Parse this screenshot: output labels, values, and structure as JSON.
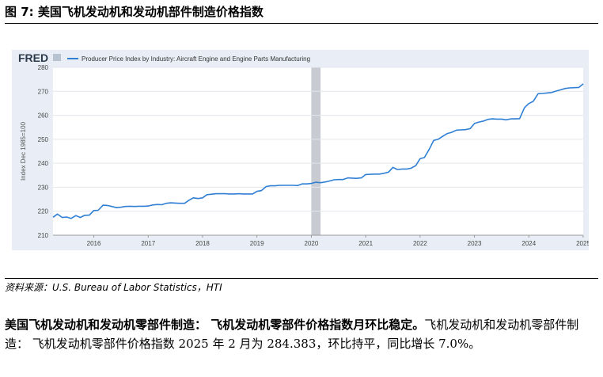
{
  "figure_title": "图 7: 美国飞机发动机和发动机部件制造价格指数",
  "source_text": "资料来源：U.S. Bureau of Labor Statistics，HTI",
  "paragraph": {
    "lead": "美国飞机发动机和发动机零部件制造：  飞机发动机零部件价格指数月环比稳定。",
    "text": "飞机发动机和发动机零部件制造：  飞机发动机零部件价格指数 2025 年 2 月为 284.383，环比持平，同比增长 7.0%。"
  },
  "fred_logo": "FRED",
  "colors": {
    "line": "#2f7fd5",
    "panel": "#e9eef6",
    "recession": "#c8ccd2",
    "grid": "#e2e6ec"
  },
  "chart_data": {
    "type": "line",
    "title": "",
    "legend_label": "Producer Price Index by Industry: Aircraft Engine and Engine Parts Manufacturing",
    "legend_position": "top-left",
    "ylabel": "Index Dec 1985=100",
    "xlabel": "",
    "ylim": [
      210,
      280
    ],
    "yticks": [
      210,
      220,
      230,
      240,
      250,
      260,
      270,
      280
    ],
    "xlim": [
      2015.25,
      2025.0
    ],
    "xticks": [
      2016,
      2017,
      2018,
      2019,
      2020,
      2021,
      2022,
      2023,
      2024,
      2025
    ],
    "grid": true,
    "recession": [
      2020.0,
      2020.17
    ],
    "series": [
      {
        "name": "Producer Price Index by Industry: Aircraft Engine and Engine Parts Manufacturing",
        "x": [
          2015.25,
          2015.33,
          2015.42,
          2015.5,
          2015.58,
          2015.67,
          2015.75,
          2015.83,
          2015.92,
          2016.0,
          2016.08,
          2016.17,
          2016.25,
          2016.33,
          2016.42,
          2016.5,
          2016.58,
          2016.67,
          2016.75,
          2016.83,
          2016.92,
          2017.0,
          2017.08,
          2017.17,
          2017.25,
          2017.33,
          2017.42,
          2017.5,
          2017.58,
          2017.67,
          2017.75,
          2017.83,
          2017.92,
          2018.0,
          2018.08,
          2018.17,
          2018.25,
          2018.33,
          2018.42,
          2018.5,
          2018.58,
          2018.67,
          2018.75,
          2018.83,
          2018.92,
          2019.0,
          2019.08,
          2019.17,
          2019.25,
          2019.33,
          2019.42,
          2019.5,
          2019.58,
          2019.67,
          2019.75,
          2019.83,
          2019.92,
          2020.0,
          2020.08,
          2020.17,
          2020.25,
          2020.33,
          2020.42,
          2020.5,
          2020.58,
          2020.67,
          2020.75,
          2020.83,
          2020.92,
          2021.0,
          2021.08,
          2021.17,
          2021.25,
          2021.33,
          2021.42,
          2021.5,
          2021.58,
          2021.67,
          2021.75,
          2021.83,
          2021.92,
          2022.0,
          2022.08,
          2022.17,
          2022.25,
          2022.33,
          2022.42,
          2022.5,
          2022.58,
          2022.67,
          2022.75,
          2022.83,
          2022.92,
          2023.0,
          2023.08,
          2023.17,
          2023.25,
          2023.33,
          2023.42,
          2023.5,
          2023.58,
          2023.67,
          2023.75,
          2023.83,
          2023.92,
          2024.0,
          2024.08,
          2024.17,
          2024.25,
          2024.33,
          2024.42,
          2024.5,
          2024.58,
          2024.67,
          2024.75,
          2024.83,
          2024.92,
          2025.0
        ],
        "values": [
          217.5,
          218.8,
          217.4,
          217.6,
          217.0,
          218.2,
          217.4,
          218.3,
          218.4,
          220.3,
          220.4,
          222.5,
          222.4,
          222.0,
          221.5,
          221.7,
          222.0,
          222.1,
          222.0,
          222.1,
          222.1,
          222.2,
          222.6,
          222.8,
          222.7,
          223.3,
          223.5,
          223.4,
          223.3,
          223.3,
          224.6,
          225.6,
          225.3,
          225.6,
          226.9,
          227.1,
          227.3,
          227.3,
          227.3,
          227.2,
          227.2,
          227.3,
          227.2,
          227.2,
          227.2,
          228.3,
          228.6,
          230.3,
          230.6,
          230.6,
          230.8,
          230.8,
          230.8,
          230.8,
          230.7,
          231.4,
          231.4,
          231.6,
          232.1,
          231.9,
          232.2,
          232.6,
          233.1,
          233.2,
          233.2,
          233.9,
          233.8,
          233.7,
          233.9,
          235.3,
          235.4,
          235.5,
          235.5,
          235.8,
          236.3,
          238.3,
          237.4,
          237.6,
          237.6,
          237.9,
          239.0,
          241.9,
          242.4,
          245.9,
          249.5,
          250.0,
          251.3,
          252.4,
          252.9,
          253.8,
          253.9,
          254.0,
          254.4,
          256.6,
          257.2,
          257.6,
          258.3,
          258.5,
          258.4,
          258.4,
          258.1,
          258.5,
          258.5,
          258.6,
          263.2,
          264.9,
          265.8,
          269.0,
          269.1,
          269.3,
          269.5,
          270.1,
          270.6,
          271.2,
          271.4,
          271.5,
          271.6,
          273.1
        ]
      }
    ]
  }
}
